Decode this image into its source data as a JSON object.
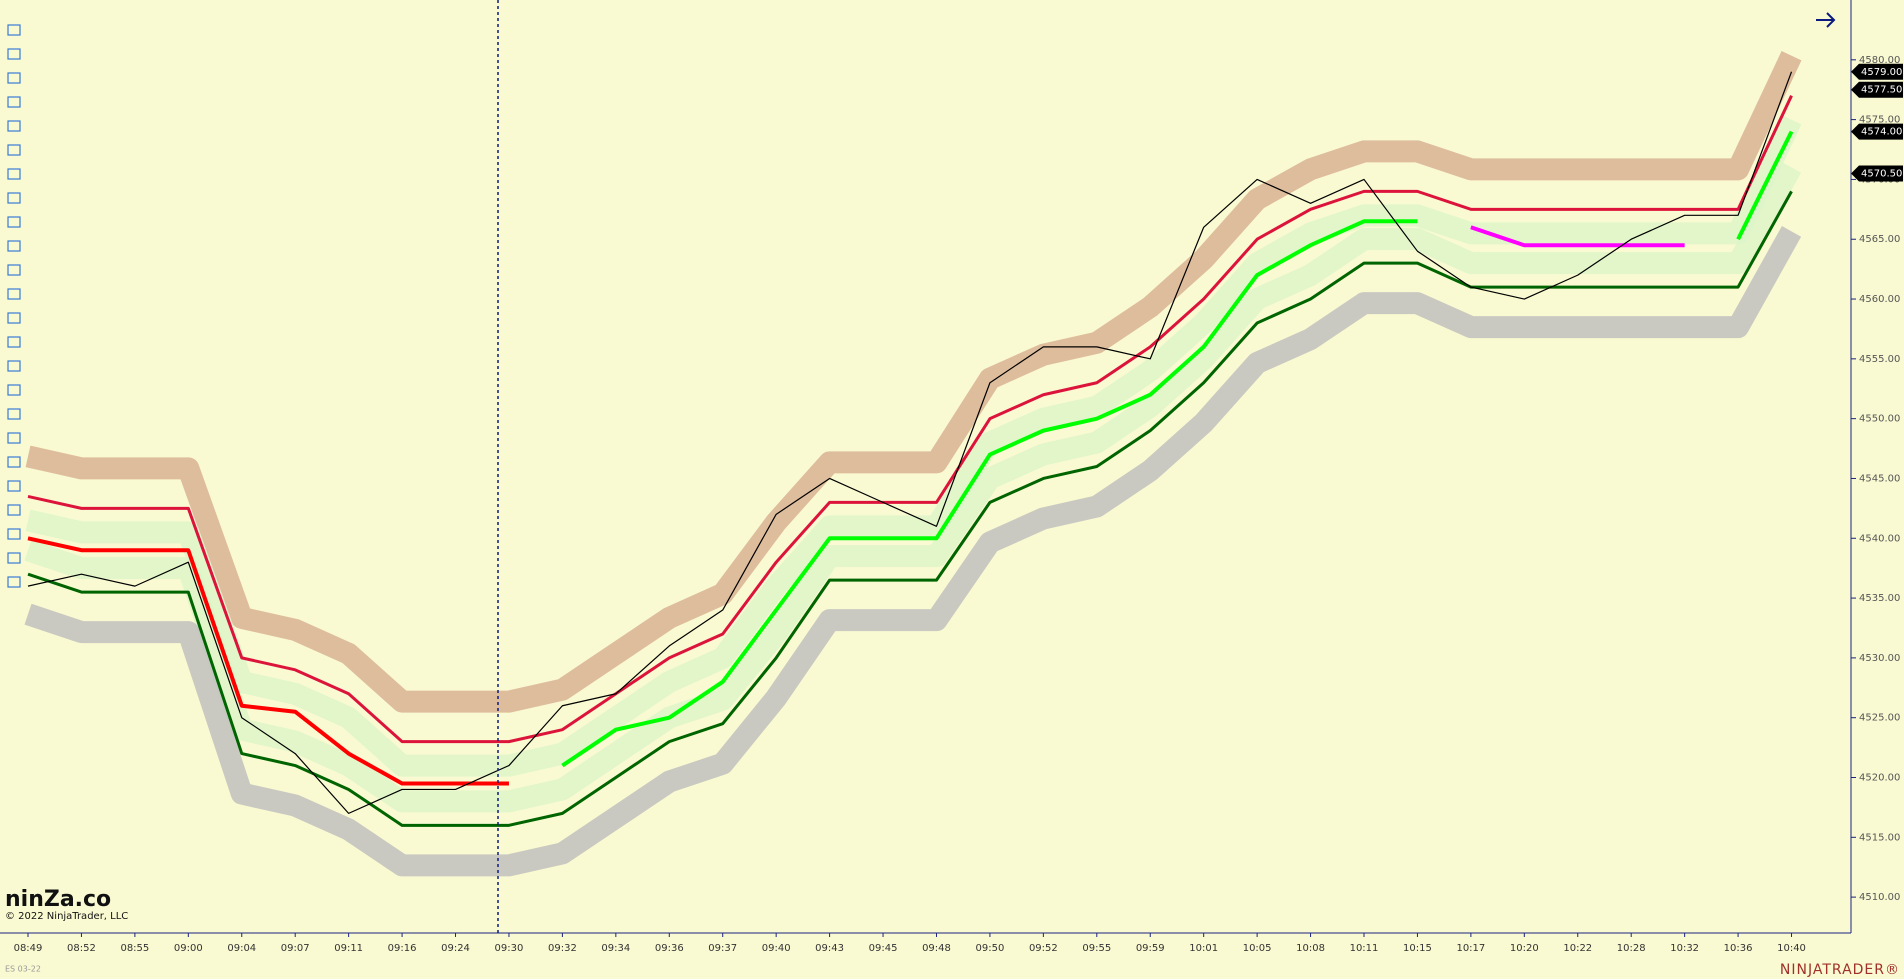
{
  "chart_data": {
    "type": "line",
    "categories": [
      "08:49",
      "08:52",
      "08:55",
      "09:00",
      "09:04",
      "09:07",
      "09:11",
      "09:16",
      "09:24",
      "09:30",
      "09:32",
      "09:34",
      "09:36",
      "09:37",
      "09:40",
      "09:43",
      "09:45",
      "09:48",
      "09:50",
      "09:52",
      "09:55",
      "09:59",
      "10:01",
      "10:05",
      "10:08",
      "10:11",
      "10:15",
      "10:17",
      "10:20",
      "10:22",
      "10:28",
      "10:32",
      "10:36",
      "10:40"
    ],
    "series": [
      {
        "color": "#dc143c",
        "values": [
          4543.5,
          4542.5,
          4542.5,
          4542.5,
          4530,
          4529,
          4527,
          4523,
          4523,
          4523,
          4524,
          4527,
          4530,
          4532,
          4538,
          4543,
          4543,
          4543,
          4550,
          4552,
          4553,
          4556,
          4560,
          4565,
          4567.5,
          4569,
          4569,
          4567.5,
          4567.5,
          4567.5,
          4567.5,
          4567.5,
          4567.5,
          4577
        ]
      },
      {
        "color": "#006400",
        "values": [
          4537,
          4535.5,
          4535.5,
          4535.5,
          4522,
          4521,
          4519,
          4516,
          4516,
          4516,
          4517,
          4520,
          4523,
          4524.5,
          4530,
          4536.5,
          4536.5,
          4536.5,
          4543,
          4545,
          4546,
          4549,
          4553,
          4558,
          4560,
          4563,
          4563,
          4561,
          4561,
          4561,
          4561,
          4561,
          4561,
          4569
        ]
      },
      {
        "color": "#ff0000",
        "values": [
          4540,
          4539,
          4539,
          4539,
          4526,
          4525.5,
          4522,
          4519.5,
          4519.5,
          4519.5,
          null,
          null,
          null,
          null,
          null,
          null,
          null,
          null,
          null,
          null,
          null,
          null,
          null,
          null,
          null,
          null,
          null,
          null,
          null,
          null,
          null,
          null,
          null,
          null
        ]
      },
      {
        "color": "#00ff00",
        "values": [
          null,
          null,
          null,
          null,
          null,
          null,
          null,
          null,
          null,
          null,
          4521,
          4524,
          4525,
          4528,
          4534,
          4540,
          4540,
          4540,
          4547,
          4549,
          4550,
          4552,
          4556,
          4562,
          4564.5,
          4566.5,
          4566.5,
          null,
          null,
          null,
          null,
          null,
          4565,
          4574
        ]
      },
      {
        "color": "#ff00ff",
        "values": [
          null,
          null,
          null,
          null,
          null,
          null,
          null,
          null,
          null,
          null,
          null,
          null,
          null,
          null,
          null,
          null,
          null,
          null,
          null,
          null,
          null,
          null,
          null,
          null,
          null,
          null,
          null,
          4566,
          4564.5,
          4564.5,
          4564.5,
          4564.5,
          null,
          null
        ]
      },
      {
        "color": "#000000",
        "values": [
          4536,
          4537,
          4536,
          4538,
          4525,
          4522,
          4517,
          4519,
          4519,
          4521,
          4526,
          4527,
          4531,
          4534,
          4542,
          4545,
          4543,
          4541,
          4553,
          4556,
          4556,
          4555,
          4566,
          4570,
          4568,
          4570,
          4564,
          4561,
          4560,
          4562,
          4565,
          4567,
          4567,
          4579
        ]
      }
    ],
    "ylim": [
      4507,
      4585
    ],
    "yticks": [
      {
        "value": 4510,
        "label": "4510.00"
      },
      {
        "value": 4515,
        "label": "4515.00"
      },
      {
        "value": 4520,
        "label": "4520.00"
      },
      {
        "value": 4525,
        "label": "4525.00"
      },
      {
        "value": 4530,
        "label": "4530.00"
      },
      {
        "value": 4535,
        "label": "4535.00"
      },
      {
        "value": 4540,
        "label": "4540.00"
      },
      {
        "value": 4545,
        "label": "4545.00"
      },
      {
        "value": 4550,
        "label": "4550.00"
      },
      {
        "value": 4555,
        "label": "4555.00"
      },
      {
        "value": 4560,
        "label": "4560.00"
      },
      {
        "value": 4565,
        "label": "4565.00"
      },
      {
        "value": 4570,
        "label": "4570.00"
      },
      {
        "value": 4575,
        "label": "4575.00"
      },
      {
        "value": 4580,
        "label": "4580.00"
      }
    ],
    "price_markers": [
      {
        "value": 4579,
        "label": "4579.00"
      },
      {
        "value": 4577.5,
        "label": "4577.50"
      },
      {
        "value": 4574,
        "label": "4574.00"
      },
      {
        "value": 4570.5,
        "label": "4570.50"
      }
    ]
  },
  "watermark": {
    "brand": "ninZa.co",
    "copyright": "© 2022 NinjaTrader, LLC",
    "instrument": "ES 03-22",
    "logo": "NINJATRADER®"
  }
}
